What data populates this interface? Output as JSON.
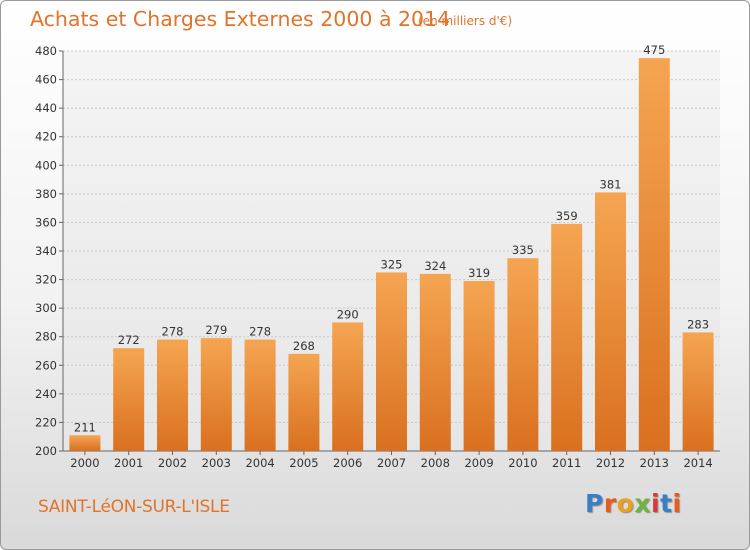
{
  "header": {
    "title": "Achats et Charges Externes 2000 à 2014",
    "subtitle": "(en milliers d'€)"
  },
  "footer": {
    "town": "SAINT-LéON-SUR-L'ISLE",
    "logo_letters": [
      "P",
      "r",
      "o",
      "x",
      "i",
      "t",
      "i"
    ],
    "logo_colors": [
      "#3a7fc4",
      "#e85b1c",
      "#e8a21c",
      "#6db33f",
      "#d63a3a",
      "#3a7fc4",
      "#e85b1c"
    ]
  },
  "chart_data": {
    "type": "bar",
    "categories": [
      "2000",
      "2001",
      "2002",
      "2003",
      "2004",
      "2005",
      "2006",
      "2007",
      "2008",
      "2009",
      "2010",
      "2011",
      "2012",
      "2013",
      "2014"
    ],
    "values": [
      211,
      272,
      278,
      279,
      278,
      268,
      290,
      325,
      324,
      319,
      335,
      359,
      381,
      475,
      283
    ],
    "ylim": [
      200,
      480
    ],
    "yticks": [
      200,
      220,
      240,
      260,
      280,
      300,
      320,
      340,
      360,
      380,
      400,
      420,
      440,
      460,
      480
    ],
    "grid": true,
    "bar_color_light": "#f5a552",
    "bar_color_dark": "#d9701f"
  }
}
